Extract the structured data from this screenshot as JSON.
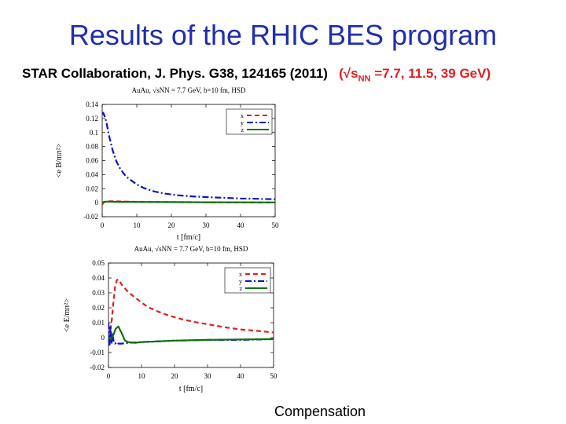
{
  "header": {
    "title": "Results of the RHIC BES program",
    "citation": "STAR Collaboration, J. Phys. G38, 124165 (2011)",
    "energy_open": "(√s",
    "energy_sub": "NN",
    "energy_rest": " =7.7, 11.5, 39 GeV)"
  },
  "footer": {
    "caption": "Compensation"
  },
  "colors": {
    "title": "#1f2fb0",
    "x": "#e02020",
    "y": "#1010d0",
    "z": "#107010"
  },
  "chart_data": [
    {
      "type": "line",
      "title": "AuAu,  √sNN = 7.7 GeV,  b=10 fm, HSD",
      "xlabel": "t  [fm/c]",
      "ylabel": "<e B/mπ²>",
      "xlim": [
        0,
        50
      ],
      "ylim": [
        -0.02,
        0.14
      ],
      "xticks": [
        0,
        10,
        20,
        30,
        40,
        50
      ],
      "yticks": [
        -0.02,
        0,
        0.02,
        0.04,
        0.06,
        0.08,
        0.1,
        0.12,
        0.14
      ],
      "ytick_labels": [
        "-0.02",
        "0",
        "0.02",
        "0.04",
        "0.06",
        "0.08",
        "0.1",
        "0.12",
        "0.14"
      ],
      "legend_position": "top-right",
      "series": [
        {
          "name": "x",
          "color": "#e02020",
          "dash": "dashed",
          "x": [
            0,
            0.3,
            0.8,
            2,
            5,
            10,
            20,
            30,
            40,
            50
          ],
          "y": [
            -0.003,
            0,
            0.001,
            0.002,
            0.0018,
            0.0012,
            0.0008,
            0.0006,
            0.0004,
            0.0003
          ]
        },
        {
          "name": "y",
          "color": "#1010d0",
          "dash": "dashdot",
          "x": [
            0,
            0.3,
            0.8,
            1.2,
            2,
            3,
            4,
            5,
            6,
            7,
            8,
            10,
            12,
            15,
            18,
            22,
            26,
            30,
            35,
            40,
            45,
            50
          ],
          "y": [
            0.126,
            0.128,
            0.122,
            0.115,
            0.095,
            0.075,
            0.06,
            0.05,
            0.043,
            0.037,
            0.033,
            0.026,
            0.021,
            0.016,
            0.013,
            0.0105,
            0.009,
            0.008,
            0.007,
            0.006,
            0.0055,
            0.005
          ]
        },
        {
          "name": "z",
          "color": "#107010",
          "dash": "solid",
          "x": [
            0,
            0.5,
            1,
            2,
            5,
            10,
            20,
            30,
            40,
            50
          ],
          "y": [
            0,
            0.001,
            0.0015,
            0.0015,
            0.0012,
            0.001,
            0.0008,
            0.0006,
            0.0005,
            0.0004
          ]
        }
      ]
    },
    {
      "type": "line",
      "title": "AuAu,  √sNN = 7.7 GeV,  b=10 fm, HSD",
      "xlabel": "t  [fm/c]",
      "ylabel": "<e E/mπ²>",
      "xlim": [
        0,
        50
      ],
      "ylim": [
        -0.02,
        0.05
      ],
      "xticks": [
        0,
        10,
        20,
        30,
        40,
        50
      ],
      "yticks": [
        -0.02,
        -0.01,
        0,
        0.01,
        0.02,
        0.03,
        0.04,
        0.05
      ],
      "ytick_labels": [
        "-0.02",
        "-0.01",
        "0",
        "0.01",
        "0.02",
        "0.03",
        "0.04",
        "0.05"
      ],
      "legend_position": "top-right",
      "series": [
        {
          "name": "x",
          "color": "#e02020",
          "dash": "dashed",
          "x": [
            0,
            0.5,
            1,
            1.5,
            2,
            2.5,
            3,
            3.5,
            4,
            5,
            6,
            8,
            10,
            12,
            15,
            18,
            22,
            26,
            30,
            35,
            40,
            45,
            50
          ],
          "y": [
            0.0,
            0.004,
            0.012,
            0.024,
            0.034,
            0.0385,
            0.039,
            0.0375,
            0.0355,
            0.033,
            0.0305,
            0.027,
            0.0235,
            0.0205,
            0.0175,
            0.015,
            0.0125,
            0.0105,
            0.009,
            0.007,
            0.0055,
            0.0045,
            0.0035
          ]
        },
        {
          "name": "y",
          "color": "#1010d0",
          "dash": "dashdot",
          "x": [
            0,
            0.3,
            0.6,
            0.9,
            1.2,
            1.6,
            2,
            2.5,
            3,
            4,
            6,
            10,
            20,
            30,
            40,
            50
          ],
          "y": [
            0.01,
            -0.006,
            0.008,
            -0.004,
            0.003,
            -0.003,
            -0.004,
            -0.003,
            -0.004,
            -0.004,
            -0.0035,
            -0.003,
            -0.002,
            -0.0015,
            -0.0015,
            -0.001
          ]
        },
        {
          "name": "z",
          "color": "#107010",
          "dash": "solid",
          "x": [
            0,
            0.8,
            1.5,
            2.2,
            3,
            4,
            5,
            6,
            8,
            10,
            20,
            30,
            40,
            50
          ],
          "y": [
            0,
            -0.001,
            0.002,
            0.006,
            0.0075,
            0.003,
            -0.002,
            -0.003,
            -0.0035,
            -0.003,
            -0.002,
            -0.0015,
            -0.0012,
            -0.001
          ]
        }
      ]
    }
  ]
}
